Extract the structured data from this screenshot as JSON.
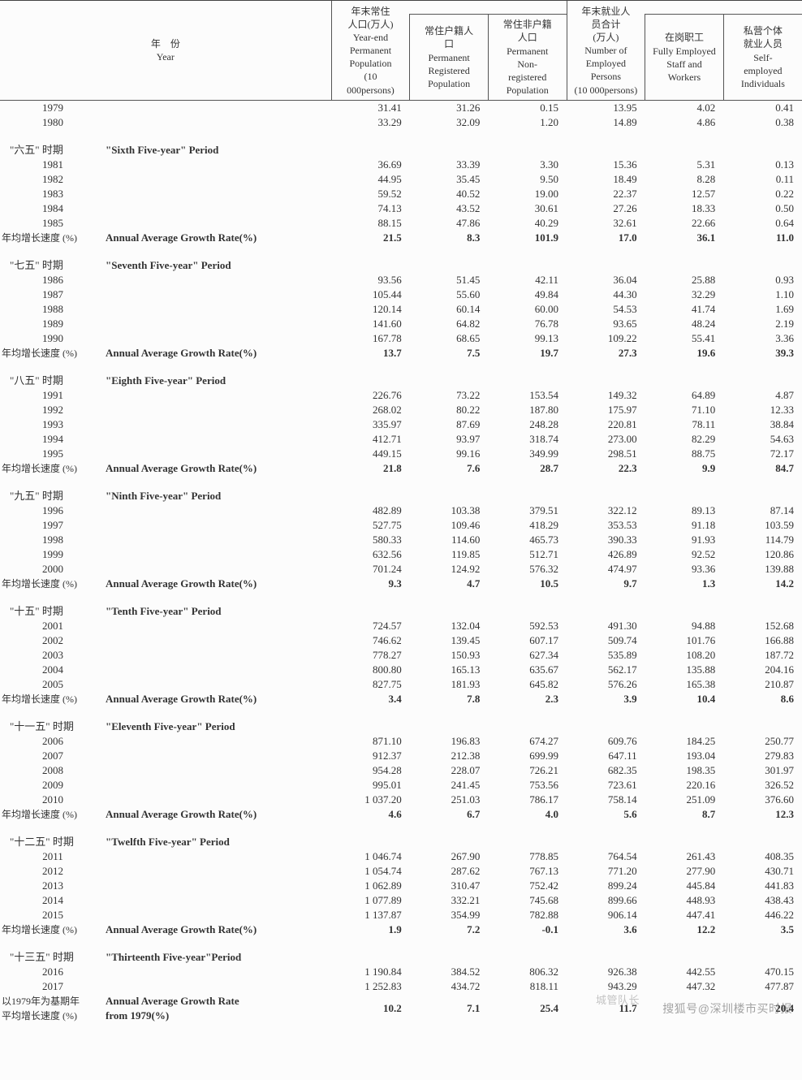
{
  "header": {
    "year_cn": "年　份",
    "year_en": "Year",
    "cols": [
      {
        "cn": "年末常住人口(万人)",
        "en": "Year-end Permanent Population (10 000persons)"
      },
      {
        "cn": "常住户籍人口",
        "en": "Permanent Registered Population"
      },
      {
        "cn": "常住非户籍人口",
        "en": "Permanent Non-registered Population"
      },
      {
        "cn": "年末就业人员合计 (万人)",
        "en": "Number of Employed Persons (10 000persons)"
      },
      {
        "cn": "在岗职工",
        "en": "Fully Employed Staff and Workers"
      },
      {
        "cn": "私营个体就业人员",
        "en": "Self-employed Individuals"
      }
    ]
  },
  "top_rows": [
    {
      "y": "1979",
      "v": [
        "31.41",
        "31.26",
        "0.15",
        "13.95",
        "4.02",
        "0.41"
      ]
    },
    {
      "y": "1980",
      "v": [
        "33.29",
        "32.09",
        "1.20",
        "14.89",
        "4.86",
        "0.38"
      ]
    }
  ],
  "sections": [
    {
      "cn": "\"六五\" 时期",
      "en": "\"Sixth Five-year\" Period",
      "rows": [
        {
          "y": "1981",
          "v": [
            "36.69",
            "33.39",
            "3.30",
            "15.36",
            "5.31",
            "0.13"
          ]
        },
        {
          "y": "1982",
          "v": [
            "44.95",
            "35.45",
            "9.50",
            "18.49",
            "8.28",
            "0.11"
          ]
        },
        {
          "y": "1983",
          "v": [
            "59.52",
            "40.52",
            "19.00",
            "22.37",
            "12.57",
            "0.22"
          ]
        },
        {
          "y": "1984",
          "v": [
            "74.13",
            "43.52",
            "30.61",
            "27.26",
            "18.33",
            "0.50"
          ]
        },
        {
          "y": "1985",
          "v": [
            "88.15",
            "47.86",
            "40.29",
            "32.61",
            "22.66",
            "0.64"
          ]
        }
      ],
      "growth": [
        "21.5",
        "8.3",
        "101.9",
        "17.0",
        "36.1",
        "11.0"
      ]
    },
    {
      "cn": "\"七五\" 时期",
      "en": "\"Seventh Five-year\" Period",
      "rows": [
        {
          "y": "1986",
          "v": [
            "93.56",
            "51.45",
            "42.11",
            "36.04",
            "25.88",
            "0.93"
          ]
        },
        {
          "y": "1987",
          "v": [
            "105.44",
            "55.60",
            "49.84",
            "44.30",
            "32.29",
            "1.10"
          ]
        },
        {
          "y": "1988",
          "v": [
            "120.14",
            "60.14",
            "60.00",
            "54.53",
            "41.74",
            "1.69"
          ]
        },
        {
          "y": "1989",
          "v": [
            "141.60",
            "64.82",
            "76.78",
            "93.65",
            "48.24",
            "2.19"
          ]
        },
        {
          "y": "1990",
          "v": [
            "167.78",
            "68.65",
            "99.13",
            "109.22",
            "55.41",
            "3.36"
          ]
        }
      ],
      "growth": [
        "13.7",
        "7.5",
        "19.7",
        "27.3",
        "19.6",
        "39.3"
      ]
    },
    {
      "cn": "\"八五\" 时期",
      "en": "\"Eighth Five-year\" Period",
      "rows": [
        {
          "y": "1991",
          "v": [
            "226.76",
            "73.22",
            "153.54",
            "149.32",
            "64.89",
            "4.87"
          ]
        },
        {
          "y": "1992",
          "v": [
            "268.02",
            "80.22",
            "187.80",
            "175.97",
            "71.10",
            "12.33"
          ]
        },
        {
          "y": "1993",
          "v": [
            "335.97",
            "87.69",
            "248.28",
            "220.81",
            "78.11",
            "38.84"
          ]
        },
        {
          "y": "1994",
          "v": [
            "412.71",
            "93.97",
            "318.74",
            "273.00",
            "82.29",
            "54.63"
          ]
        },
        {
          "y": "1995",
          "v": [
            "449.15",
            "99.16",
            "349.99",
            "298.51",
            "88.75",
            "72.17"
          ]
        }
      ],
      "growth": [
        "21.8",
        "7.6",
        "28.7",
        "22.3",
        "9.9",
        "84.7"
      ]
    },
    {
      "cn": "\"九五\" 时期",
      "en": "\"Ninth Five-year\" Period",
      "rows": [
        {
          "y": "1996",
          "v": [
            "482.89",
            "103.38",
            "379.51",
            "322.12",
            "89.13",
            "87.14"
          ]
        },
        {
          "y": "1997",
          "v": [
            "527.75",
            "109.46",
            "418.29",
            "353.53",
            "91.18",
            "103.59"
          ]
        },
        {
          "y": "1998",
          "v": [
            "580.33",
            "114.60",
            "465.73",
            "390.33",
            "91.93",
            "114.79"
          ]
        },
        {
          "y": "1999",
          "v": [
            "632.56",
            "119.85",
            "512.71",
            "426.89",
            "92.52",
            "120.86"
          ]
        },
        {
          "y": "2000",
          "v": [
            "701.24",
            "124.92",
            "576.32",
            "474.97",
            "93.36",
            "139.88"
          ]
        }
      ],
      "growth": [
        "9.3",
        "4.7",
        "10.5",
        "9.7",
        "1.3",
        "14.2"
      ]
    },
    {
      "cn": "\"十五\" 时期",
      "en": "\"Tenth Five-year\" Period",
      "rows": [
        {
          "y": "2001",
          "v": [
            "724.57",
            "132.04",
            "592.53",
            "491.30",
            "94.88",
            "152.68"
          ]
        },
        {
          "y": "2002",
          "v": [
            "746.62",
            "139.45",
            "607.17",
            "509.74",
            "101.76",
            "166.88"
          ]
        },
        {
          "y": "2003",
          "v": [
            "778.27",
            "150.93",
            "627.34",
            "535.89",
            "108.20",
            "187.72"
          ]
        },
        {
          "y": "2004",
          "v": [
            "800.80",
            "165.13",
            "635.67",
            "562.17",
            "135.88",
            "204.16"
          ]
        },
        {
          "y": "2005",
          "v": [
            "827.75",
            "181.93",
            "645.82",
            "576.26",
            "165.38",
            "210.87"
          ]
        }
      ],
      "growth": [
        "3.4",
        "7.8",
        "2.3",
        "3.9",
        "10.4",
        "8.6"
      ]
    },
    {
      "cn": "\"十一五\" 时期",
      "en": "\"Eleventh Five-year\" Period",
      "rows": [
        {
          "y": "2006",
          "v": [
            "871.10",
            "196.83",
            "674.27",
            "609.76",
            "184.25",
            "250.77"
          ]
        },
        {
          "y": "2007",
          "v": [
            "912.37",
            "212.38",
            "699.99",
            "647.11",
            "193.04",
            "279.83"
          ]
        },
        {
          "y": "2008",
          "v": [
            "954.28",
            "228.07",
            "726.21",
            "682.35",
            "198.35",
            "301.97"
          ]
        },
        {
          "y": "2009",
          "v": [
            "995.01",
            "241.45",
            "753.56",
            "723.61",
            "220.16",
            "326.52"
          ]
        },
        {
          "y": "2010",
          "v": [
            "1 037.20",
            "251.03",
            "786.17",
            "758.14",
            "251.09",
            "376.60"
          ]
        }
      ],
      "growth": [
        "4.6",
        "6.7",
        "4.0",
        "5.6",
        "8.7",
        "12.3"
      ]
    },
    {
      "cn": "\"十二五\" 时期",
      "en": "\"Twelfth Five-year\" Period",
      "rows": [
        {
          "y": "2011",
          "v": [
            "1 046.74",
            "267.90",
            "778.85",
            "764.54",
            "261.43",
            "408.35"
          ]
        },
        {
          "y": "2012",
          "v": [
            "1 054.74",
            "287.62",
            "767.13",
            "771.20",
            "277.90",
            "430.71"
          ]
        },
        {
          "y": "2013",
          "v": [
            "1 062.89",
            "310.47",
            "752.42",
            "899.24",
            "445.84",
            "441.83"
          ]
        },
        {
          "y": "2014",
          "v": [
            "1 077.89",
            "332.21",
            "745.68",
            "899.66",
            "448.93",
            "438.43"
          ]
        },
        {
          "y": "2015",
          "v": [
            "1 137.87",
            "354.99",
            "782.88",
            "906.14",
            "447.41",
            "446.22"
          ]
        }
      ],
      "growth": [
        "1.9",
        "7.2",
        "-0.1",
        "3.6",
        "12.2",
        "3.5"
      ]
    },
    {
      "cn": "\"十三五\" 时期",
      "en": "\"Thirteenth Five-year\"Period",
      "rows": [
        {
          "y": "2016",
          "v": [
            "1 190.84",
            "384.52",
            "806.32",
            "926.38",
            "442.55",
            "470.15"
          ]
        },
        {
          "y": "2017",
          "v": [
            "1 252.83",
            "434.72",
            "818.11",
            "943.29",
            "447.32",
            "477.87"
          ]
        }
      ],
      "growth": null
    }
  ],
  "growth_label_cn": "年均增长速度 (%)",
  "growth_label_en": "Annual Average Growth Rate(%)",
  "footer": {
    "cn1": "以1979年为基期年",
    "cn2": "平均增长速度 (%)",
    "en1": "Annual Average Growth Rate",
    "en2": "from 1979(%)",
    "vals": [
      "10.2",
      "7.1",
      "25.4",
      "11.7",
      "",
      "20.4"
    ]
  },
  "watermark1": "搜狐号@深圳楼市买时报",
  "watermark2": "城管队长",
  "colors": {
    "bg": "#fcfcfc",
    "text": "#333",
    "border": "#555"
  }
}
